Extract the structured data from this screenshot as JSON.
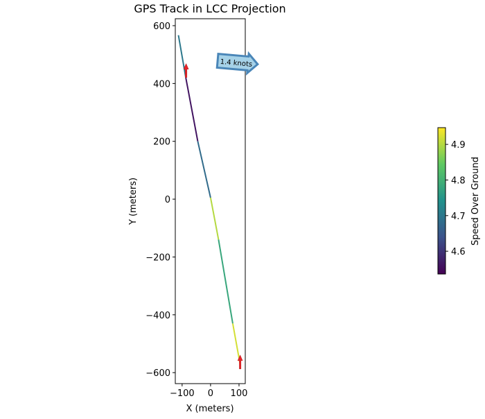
{
  "chart_data": {
    "type": "line",
    "title": "GPS Track in LCC Projection",
    "xlabel": "X (meters)",
    "ylabel": "Y (meters)",
    "xlim": [
      -124,
      122
    ],
    "ylim": [
      -638,
      624
    ],
    "xticks": [
      -100,
      0,
      100
    ],
    "yticks": [
      600,
      400,
      200,
      0,
      -200,
      -400,
      -600
    ],
    "xtick_labels": [
      "−100",
      "0",
      "100"
    ],
    "ytick_labels": [
      "600",
      "400",
      "200",
      "0",
      "−200",
      "−400",
      "−600"
    ],
    "grid": false,
    "segments": [
      {
        "from": [
          -113,
          567
        ],
        "to": [
          -87,
          420
        ],
        "speed": 4.7
      },
      {
        "from": [
          -87,
          420
        ],
        "to": [
          -45,
          200
        ],
        "speed": 4.56
      },
      {
        "from": [
          -45,
          200
        ],
        "to": [
          0,
          5
        ],
        "speed": 4.68
      },
      {
        "from": [
          0,
          5
        ],
        "to": [
          28,
          -140
        ],
        "speed": 4.9
      },
      {
        "from": [
          28,
          -140
        ],
        "to": [
          78,
          -430
        ],
        "speed": 4.78
      },
      {
        "from": [
          78,
          -430
        ],
        "to": [
          105,
          -577
        ],
        "speed": 4.92
      }
    ],
    "heading_arrows": [
      {
        "at": [
          -86,
          440
        ],
        "direction": "north",
        "color": "#e8242a"
      },
      {
        "at": [
          104,
          -568
        ],
        "direction": "north",
        "color": "#e8242a"
      }
    ],
    "annotation": {
      "text": "1.4 knots",
      "fill": "#a6d2e8",
      "edge": "#4a86b8"
    },
    "colorbar": {
      "label": "Speed Over Ground",
      "range": [
        4.536,
        4.947
      ],
      "ticks": [
        4.6,
        4.7,
        4.8,
        4.9
      ],
      "tick_labels": [
        "4.6",
        "4.7",
        "4.8",
        "4.9"
      ],
      "colormap": "viridis"
    }
  }
}
